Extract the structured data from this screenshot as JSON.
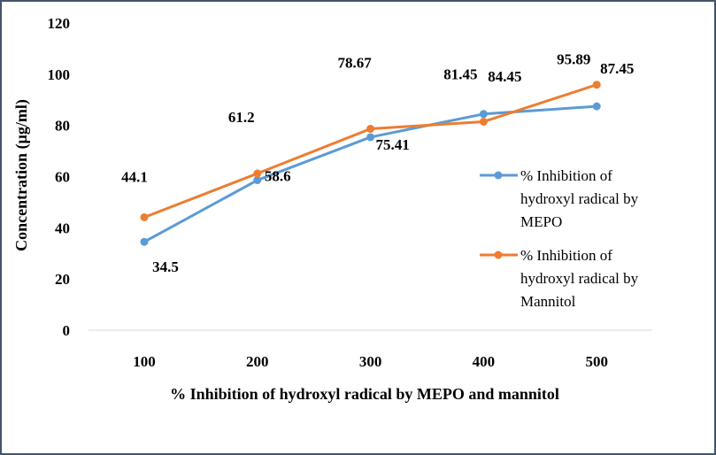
{
  "chart_data": {
    "type": "line",
    "title": "",
    "xlabel": "% Inhibition of hydroxyl radical by MEPO and mannitol",
    "ylabel": "Concentration  (µg/ml)",
    "categories": [
      "100",
      "200",
      "300",
      "400",
      "500"
    ],
    "yticks": [
      "0",
      "20",
      "40",
      "60",
      "80",
      "100",
      "120"
    ],
    "ylim": [
      0,
      120
    ],
    "grid": false,
    "legend_position": "right",
    "series": [
      {
        "name": "% Inhibition of hydroxyl radical by MEPO",
        "legend_lines": [
          "% Inhibition of",
          "hydroxyl radical by",
          "MEPO"
        ],
        "values": [
          34.5,
          58.6,
          75.41,
          84.45,
          87.45
        ],
        "labels": [
          "34.5",
          "58.6",
          "75.41",
          "84.45",
          "87.45"
        ],
        "color": "#5b9bd5"
      },
      {
        "name": "% Inhibition of hydroxyl radical by Mannitol",
        "legend_lines": [
          "% Inhibition of",
          "hydroxyl radical by",
          "Mannitol"
        ],
        "values": [
          44.1,
          61.2,
          78.67,
          81.45,
          95.89
        ],
        "labels": [
          "44.1",
          "61.2",
          "78.67",
          "81.45",
          "95.89"
        ],
        "color": "#ed7d31"
      }
    ]
  }
}
